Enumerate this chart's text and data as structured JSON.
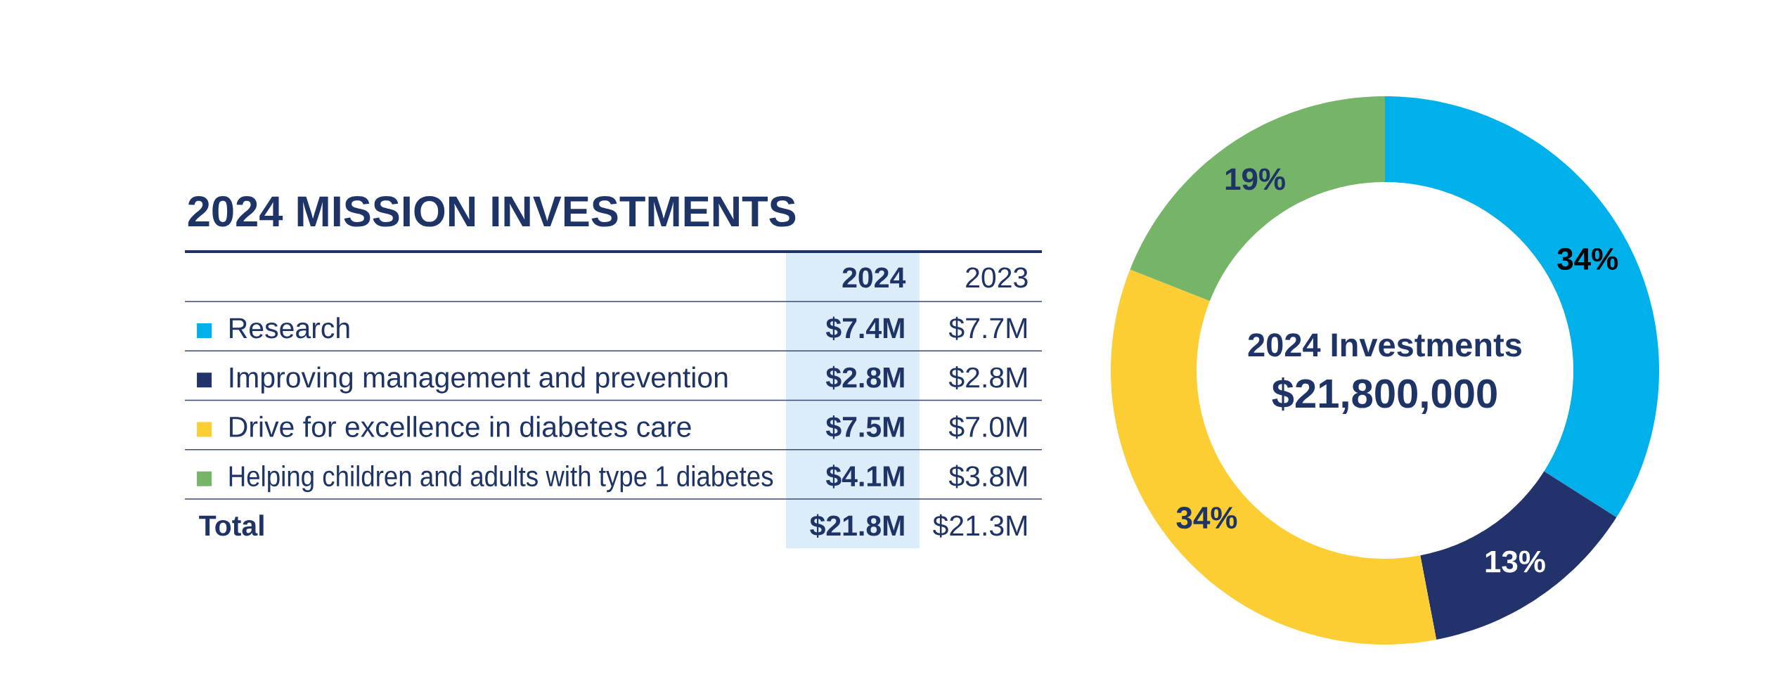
{
  "chart_data": [
    {
      "type": "other",
      "title": "2024 MISSION INVESTMENTS",
      "annotations": [
        "2024",
        "2023",
        "$7.4M",
        "$7.7M",
        "$2.8M",
        "$2.8M",
        "$7.5M",
        "$7.0M",
        "$4.1M",
        "$3.8M",
        "Total",
        "$21.8M",
        "$21.3M"
      ]
    },
    {
      "type": "donut",
      "categories": [
        "Research",
        "Improving management and prevention",
        "Drive for excellence in diabetes care",
        "Helping children and adults with type 1 diabetes"
      ],
      "values": [
        34,
        13,
        34,
        19
      ],
      "colors": [
        "#00b0ea",
        "#21336a",
        "#fdcd34",
        "#76b467"
      ],
      "value_labels": [
        "34%",
        "13%",
        "34%",
        "19%"
      ],
      "legend": "left",
      "annotations": [
        "2024 Investments",
        "$21,800,000"
      ]
    }
  ]
}
